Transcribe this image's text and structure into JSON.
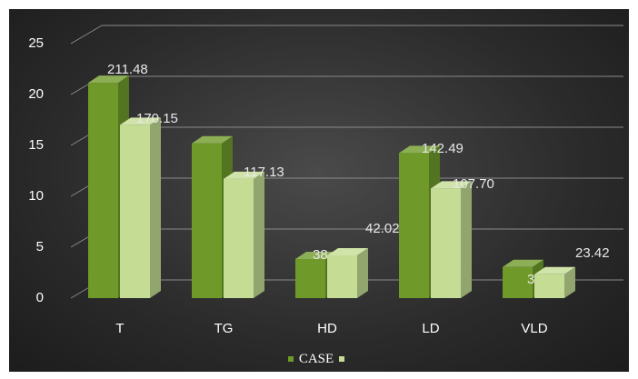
{
  "chart_data": {
    "type": "bar",
    "categories": [
      "T",
      "TG",
      "HD",
      "LD",
      "VLD"
    ],
    "series": [
      {
        "name": "CASE",
        "values": [
          21.148,
          15.2,
          3.844,
          14.249,
          3.054
        ],
        "labels": [
          "211.48",
          "",
          "38.44",
          "142.49",
          "30.54"
        ],
        "color": "#6f9a2a"
      },
      {
        "name": "",
        "values": [
          17.015,
          11.713,
          4.202,
          10.77,
          2.342
        ],
        "labels": [
          "170.15",
          "117.13",
          "42.02",
          "107.70",
          "23.42"
        ],
        "color": "#c4dc94"
      }
    ],
    "ylim": [
      0,
      25
    ],
    "yticks": [
      "0",
      "5",
      "10",
      "15",
      "20",
      "25"
    ],
    "grid": true,
    "legend_position": "bottom"
  }
}
